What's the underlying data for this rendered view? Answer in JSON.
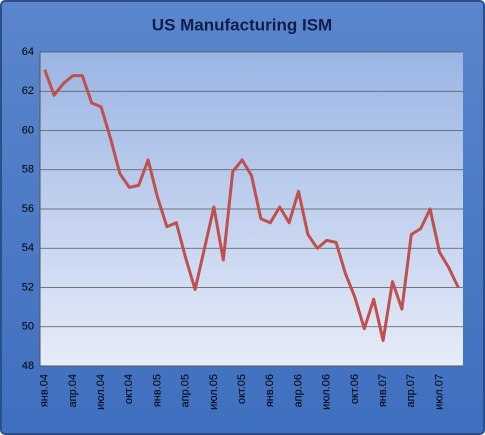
{
  "chart_data": {
    "type": "line",
    "title": "US Manufacturing ISM",
    "categories": [
      "янв.04",
      null,
      null,
      "апр.04",
      null,
      null,
      "июл.04",
      null,
      null,
      "окт.04",
      null,
      null,
      "янв.05",
      null,
      null,
      "апр.05",
      null,
      null,
      "июл.05",
      null,
      null,
      "окт.05",
      null,
      null,
      "янв.06",
      null,
      null,
      "апр.06",
      null,
      null,
      "июл.06",
      null,
      null,
      "окт.06",
      null,
      null,
      "янв.07",
      null,
      null,
      "апр.07",
      null,
      null,
      "июл.07",
      null,
      null
    ],
    "series": [
      {
        "name": "ISM",
        "color": "#c0504d",
        "values": [
          63.1,
          61.8,
          62.4,
          62.8,
          62.8,
          61.4,
          61.2,
          59.6,
          57.8,
          57.1,
          57.2,
          58.5,
          56.6,
          55.1,
          55.3,
          53.5,
          51.9,
          54.0,
          56.1,
          53.4,
          57.9,
          58.5,
          57.7,
          55.5,
          55.3,
          56.1,
          55.3,
          56.9,
          54.7,
          54.0,
          54.4,
          54.3,
          52.7,
          51.5,
          49.9,
          51.4,
          49.3,
          52.3,
          50.9,
          54.7,
          55.0,
          56.0,
          53.8,
          53.0,
          52.0
        ]
      }
    ],
    "ylim": [
      48,
      64
    ],
    "yticks": [
      48,
      50,
      52,
      54,
      56,
      58,
      60,
      62,
      64
    ],
    "grid": true
  }
}
